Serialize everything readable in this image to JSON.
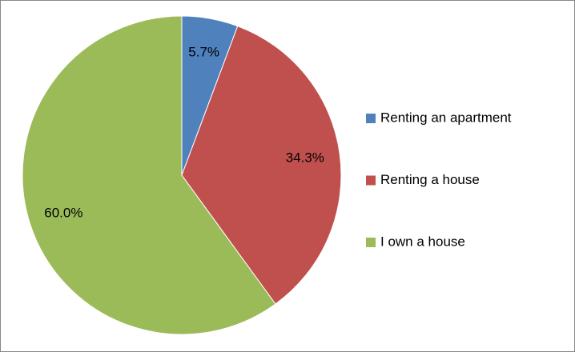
{
  "chart_data": {
    "type": "pie",
    "categories": [
      "Renting an apartment",
      "Renting a house",
      "I own a house"
    ],
    "values": [
      5.7,
      34.3,
      60.0
    ],
    "value_labels": [
      "5.7%",
      "34.3%",
      "60.0%"
    ],
    "colors": [
      "#4f81bd",
      "#c0504d",
      "#9bbb59"
    ],
    "legend": "right"
  }
}
